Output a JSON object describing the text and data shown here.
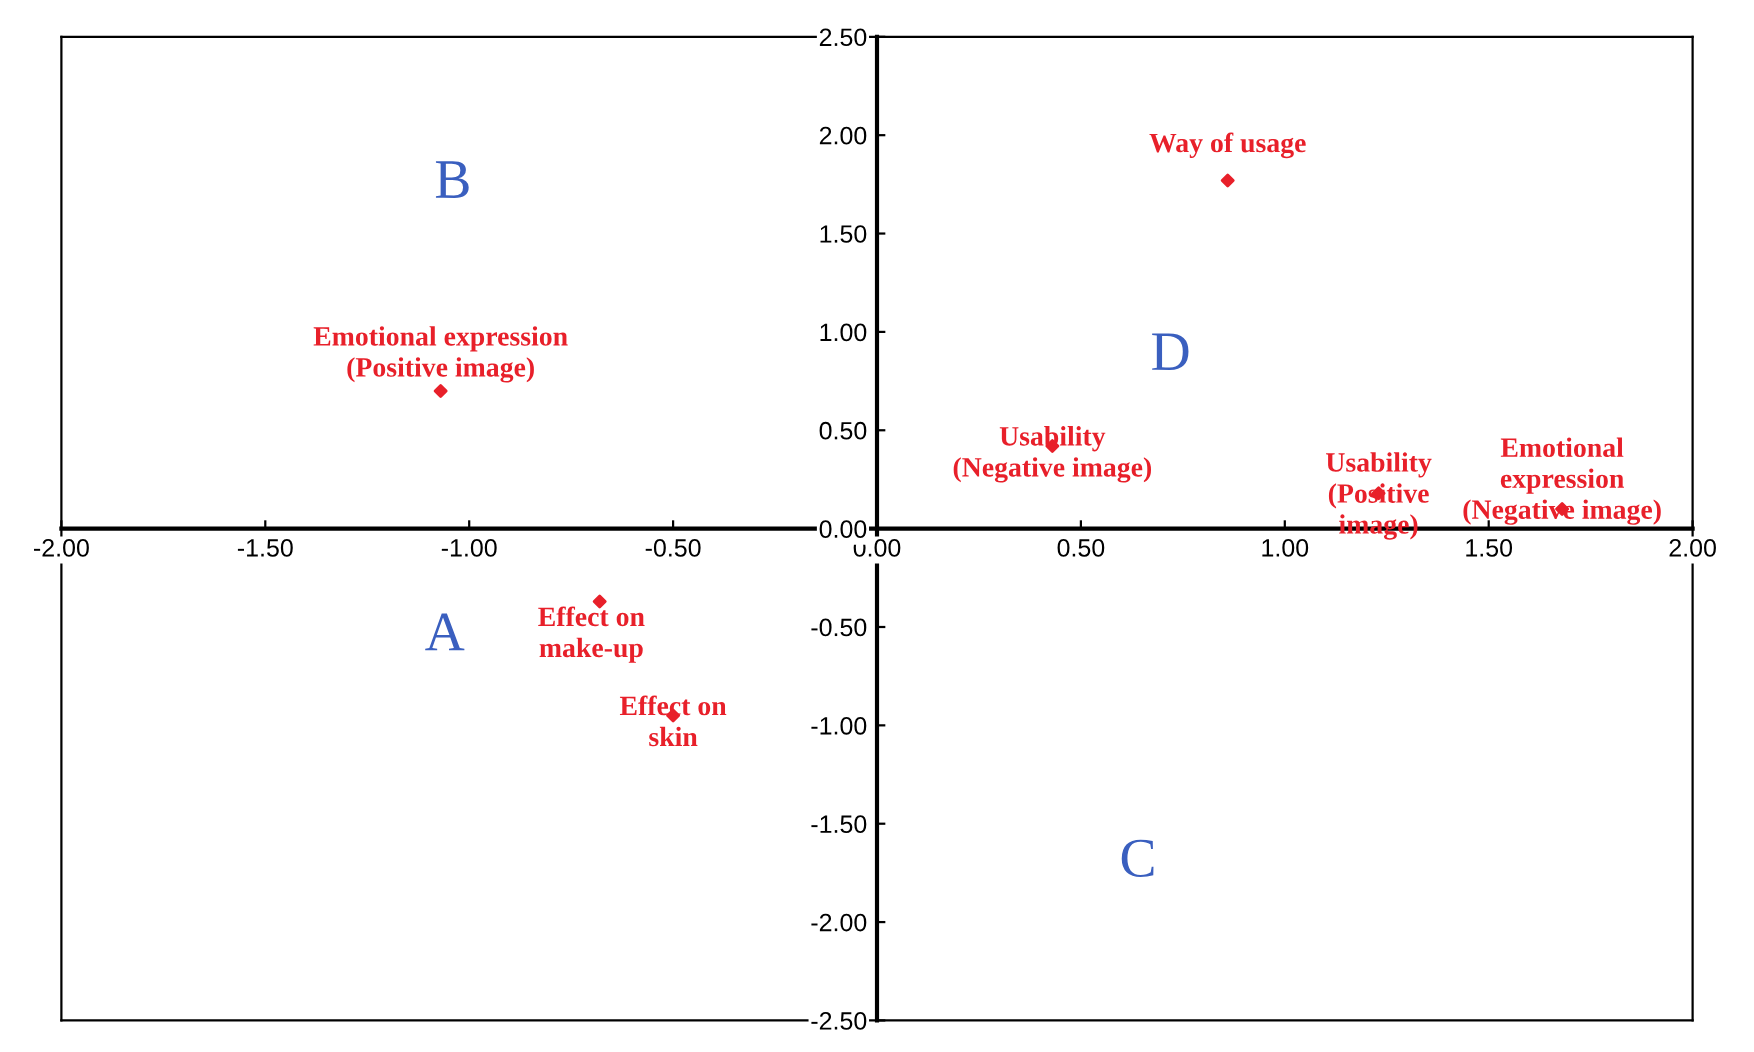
{
  "chart_data": {
    "type": "scatter",
    "marker": "diamond",
    "grid": false,
    "legend": false,
    "xlim": [
      -2,
      2
    ],
    "ylim": [
      -2.5,
      2.5
    ],
    "xticks": [
      {
        "value": -2,
        "label": "-2.00"
      },
      {
        "value": -1.5,
        "label": "-1.50"
      },
      {
        "value": -1,
        "label": "-1.00"
      },
      {
        "value": -0.5,
        "label": "-0.50"
      },
      {
        "value": 0,
        "label": "0.00"
      },
      {
        "value": 0.5,
        "label": "0.50"
      },
      {
        "value": 1,
        "label": "1.00"
      },
      {
        "value": 1.5,
        "label": "1.50"
      },
      {
        "value": 2,
        "label": "2.00"
      }
    ],
    "yticks": [
      {
        "value": -2.5,
        "label": "-2.50"
      },
      {
        "value": -2,
        "label": "-2.00"
      },
      {
        "value": -1.5,
        "label": "-1.50"
      },
      {
        "value": -1,
        "label": "-1.00"
      },
      {
        "value": -0.5,
        "label": "-0.50"
      },
      {
        "value": 0,
        "label": "0.00"
      },
      {
        "value": 0.5,
        "label": "0.50"
      },
      {
        "value": 1,
        "label": "1.00"
      },
      {
        "value": 1.5,
        "label": "1.50"
      },
      {
        "value": 2,
        "label": "2.00"
      },
      {
        "value": 2.5,
        "label": "2.50"
      }
    ],
    "series": [
      {
        "color": "#e8202a",
        "x": [
          -1.07,
          -0.68,
          -0.5,
          0.86,
          0.43,
          1.23,
          1.68
        ],
        "values": [
          0.7,
          -0.37,
          -0.95,
          1.77,
          0.42,
          0.18,
          0.1
        ],
        "value_labels": [
          "Emotional expression\n(Positive image)",
          "Effect on\nmake-up",
          "Effect on\nskin",
          "Way of usage",
          "Usability\n(Negative image)",
          "Usability\n(Positive\nimage)",
          "Emotional\nexpression\n(Negative image)"
        ]
      }
    ],
    "annotations": [
      "A",
      "B",
      "C",
      "D"
    ]
  }
}
